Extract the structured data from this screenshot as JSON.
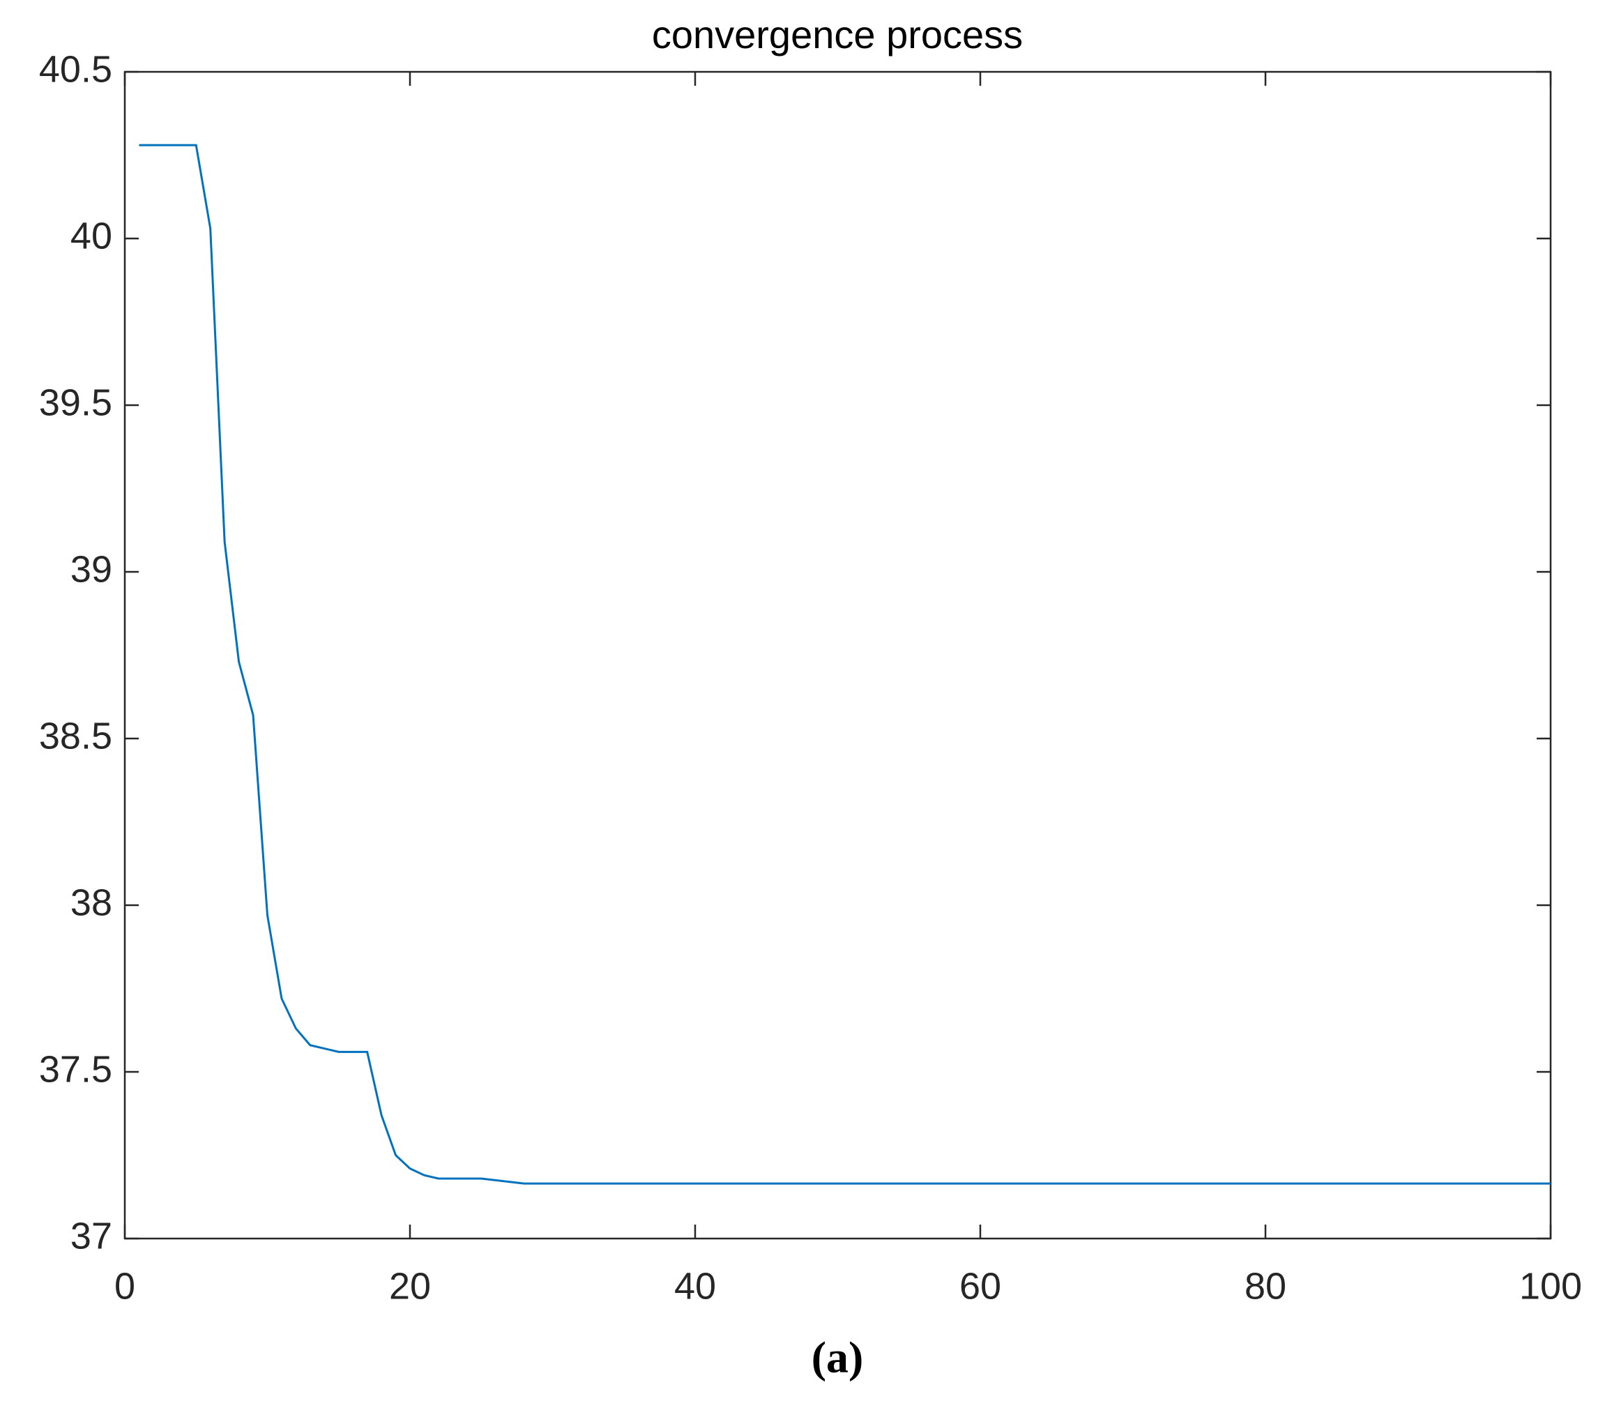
{
  "chart_data": {
    "type": "line",
    "title": "convergence process",
    "x": [
      1,
      2,
      3,
      4,
      5,
      6,
      7,
      8,
      9,
      10,
      11,
      12,
      13,
      14,
      15,
      16,
      17,
      18,
      19,
      20,
      21,
      22,
      23,
      24,
      25,
      26,
      27,
      28,
      29,
      30,
      31,
      32,
      33,
      34,
      35,
      36,
      37,
      38,
      39,
      40,
      41,
      42,
      43,
      44,
      45,
      46,
      47,
      48,
      49,
      50,
      51,
      52,
      53,
      54,
      55,
      56,
      57,
      58,
      59,
      60,
      61,
      62,
      63,
      64,
      65,
      66,
      67,
      68,
      69,
      70,
      71,
      72,
      73,
      74,
      75,
      76,
      77,
      78,
      79,
      80,
      81,
      82,
      83,
      84,
      85,
      86,
      87,
      88,
      89,
      90,
      91,
      92,
      93,
      94,
      95,
      96,
      97,
      98,
      99,
      100
    ],
    "series": [
      {
        "color": "#0072bd",
        "values": [
          40.28,
          40.28,
          40.28,
          40.28,
          40.28,
          40.03,
          39.09,
          38.73,
          38.57,
          37.97,
          37.72,
          37.63,
          37.58,
          37.57,
          37.56,
          37.56,
          37.56,
          37.37,
          37.25,
          37.21,
          37.19,
          37.18,
          37.18,
          37.18,
          37.18,
          37.175,
          37.17,
          37.165,
          37.165,
          37.165,
          37.165,
          37.165,
          37.165,
          37.165,
          37.165,
          37.165,
          37.165,
          37.165,
          37.165,
          37.165,
          37.165,
          37.165,
          37.165,
          37.165,
          37.165,
          37.165,
          37.165,
          37.165,
          37.165,
          37.165,
          37.165,
          37.165,
          37.165,
          37.165,
          37.165,
          37.165,
          37.165,
          37.165,
          37.165,
          37.165,
          37.165,
          37.165,
          37.165,
          37.165,
          37.165,
          37.165,
          37.165,
          37.165,
          37.165,
          37.165,
          37.165,
          37.165,
          37.165,
          37.165,
          37.165,
          37.165,
          37.165,
          37.165,
          37.165,
          37.165,
          37.165,
          37.165,
          37.165,
          37.165,
          37.165,
          37.165,
          37.165,
          37.165,
          37.165,
          37.165,
          37.165,
          37.165,
          37.165,
          37.165,
          37.165,
          37.165,
          37.165,
          37.165,
          37.165,
          37.165
        ]
      }
    ],
    "xlim": [
      0,
      100
    ],
    "xticks": [
      0,
      20,
      40,
      60,
      80,
      100
    ],
    "ylim": [
      37,
      40.5
    ],
    "yticks": [
      37,
      37.5,
      38,
      38.5,
      39,
      39.5,
      40,
      40.5
    ]
  },
  "caption": "(a)"
}
